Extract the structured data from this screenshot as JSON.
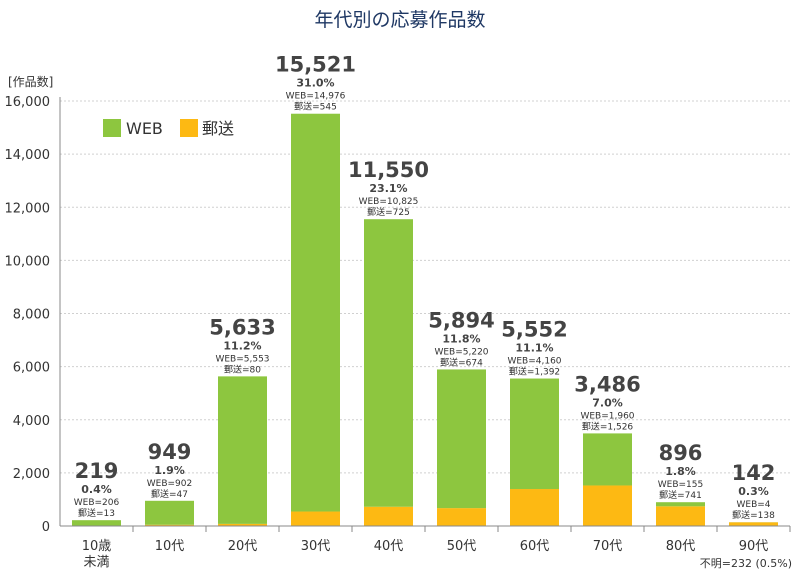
{
  "chart_data": {
    "type": "bar",
    "stacked": true,
    "title": "年代別の応募作品数",
    "ylabel": "[作品数]",
    "ylim": [
      0,
      16000
    ],
    "yticks": [
      0,
      2000,
      4000,
      6000,
      8000,
      10000,
      12000,
      14000,
      16000
    ],
    "ytick_labels": [
      "0",
      "2,000",
      "4,000",
      "6,000",
      "8,000",
      "10,000",
      "12,000",
      "14,000",
      "16,000"
    ],
    "grid": true,
    "legend_position": "top-left",
    "categories": [
      [
        "10歳",
        "未満"
      ],
      [
        "10代"
      ],
      [
        "20代"
      ],
      [
        "30代"
      ],
      [
        "40代"
      ],
      [
        "50代"
      ],
      [
        "60代"
      ],
      [
        "70代"
      ],
      [
        "80代"
      ],
      [
        "90代"
      ]
    ],
    "series": [
      {
        "name": "WEB",
        "color": "#8dc63f",
        "values": [
          206,
          902,
          5553,
          14976,
          10825,
          5220,
          4160,
          1960,
          155,
          4
        ]
      },
      {
        "name": "郵送",
        "color": "#fdb913",
        "values": [
          13,
          47,
          80,
          545,
          725,
          674,
          1392,
          1526,
          741,
          138
        ]
      }
    ],
    "totals": [
      "219",
      "949",
      "5,633",
      "15,521",
      "11,550",
      "5,894",
      "5,552",
      "3,486",
      "896",
      "142"
    ],
    "percents": [
      "0.4%",
      "1.9%",
      "11.2%",
      "31.0%",
      "23.1%",
      "11.8%",
      "11.1%",
      "7.0%",
      "1.8%",
      "0.3%"
    ],
    "web_labels": [
      "WEB=206",
      "WEB=902",
      "WEB=5,553",
      "WEB=14,976",
      "WEB=10,825",
      "WEB=5,220",
      "WEB=4,160",
      "WEB=1,960",
      "WEB=155",
      "WEB=4"
    ],
    "mail_labels": [
      "郵送=13",
      "郵送=47",
      "郵送=80",
      "郵送=545",
      "郵送=725",
      "郵送=674",
      "郵送=1,392",
      "郵送=1,526",
      "郵送=741",
      "郵送=138"
    ],
    "footnote": "不明=232 (0.5%)"
  }
}
